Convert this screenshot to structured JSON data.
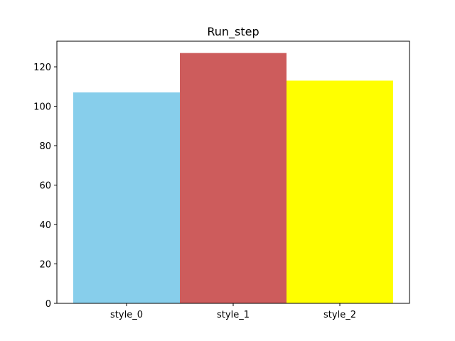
{
  "chart_data": {
    "type": "bar",
    "title": "Run_step",
    "xlabel": "",
    "ylabel": "",
    "categories": [
      "style_0",
      "style_1",
      "style_2"
    ],
    "values": [
      107,
      127,
      113
    ],
    "colors": [
      "#87ceeb",
      "#cd5c5c",
      "#ffff00"
    ],
    "ylim": [
      0,
      133
    ],
    "yticks": [
      0,
      20,
      40,
      60,
      80,
      100,
      120
    ],
    "grid": false,
    "legend": "none"
  }
}
